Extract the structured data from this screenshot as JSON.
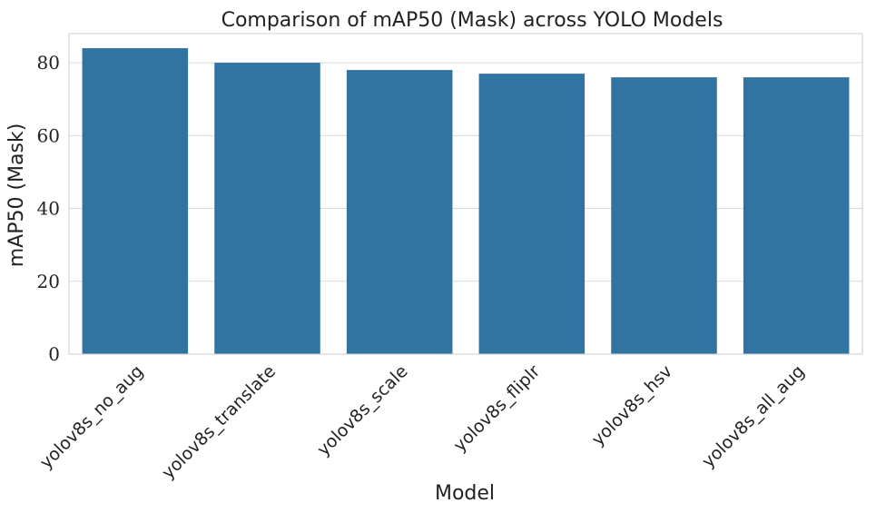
{
  "chart_data": {
    "type": "bar",
    "title": "Comparison of mAP50 (Mask) across YOLO Models",
    "xlabel": "Model",
    "ylabel": "mAP50 (Mask)",
    "categories": [
      "yolov8s_no_aug",
      "yolov8s_translate",
      "yolov8s_scale",
      "yolov8s_fliplr",
      "yolov8s_hsv",
      "yolov8s_all_aug"
    ],
    "values": [
      84,
      80,
      78,
      77,
      76,
      76
    ],
    "ylim": [
      0,
      88
    ],
    "yticks": [
      "0",
      "20",
      "40",
      "60",
      "80"
    ],
    "ytick_values": [
      0,
      20,
      40,
      60,
      80
    ],
    "grid": "horizontal",
    "bar_color": "#3274a1",
    "grid_color": "#d9d9d9",
    "frame_color": "#cccccc"
  }
}
